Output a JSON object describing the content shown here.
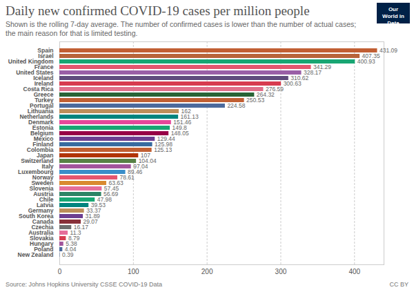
{
  "chart_data": {
    "type": "bar",
    "orientation": "horizontal",
    "title": "Daily new confirmed COVID-19 cases per million people",
    "subtitle": "Shown is the rolling 7-day average. The number of confirmed cases is lower than the number of actual cases; the main reason for that is limited testing.",
    "source": "Source: Johns Hopkins University CSSE COVID-19 Data",
    "license": "CC BY",
    "logo": "Our World in Data",
    "categories": [
      "Spain",
      "Israel",
      "United Kingdom",
      "France",
      "United States",
      "Iceland",
      "Ireland",
      "Costa Rica",
      "Greece",
      "Turkey",
      "Portugal",
      "Lithuania",
      "Netherlands",
      "Denmark",
      "Estonia",
      "Belgium",
      "Mexico",
      "Finland",
      "Colombia",
      "Japan",
      "Switzerland",
      "Italy",
      "Luxembourg",
      "Norway",
      "Sweden",
      "Slovenia",
      "Austria",
      "Chile",
      "Latvia",
      "Germany",
      "South Korea",
      "Canada",
      "Czechia",
      "Australia",
      "Slovakia",
      "Hungary",
      "Poland",
      "New Zealand"
    ],
    "values": [
      431.09,
      407.35,
      400.93,
      341.29,
      328.17,
      310.62,
      300.63,
      276.59,
      264.32,
      250.53,
      224.58,
      162,
      161.13,
      151.46,
      149.8,
      148.05,
      129.44,
      125.98,
      125.13,
      107,
      104.04,
      97.04,
      89.46,
      78.61,
      63.63,
      57.45,
      56.69,
      47.98,
      39.53,
      33.37,
      31.89,
      29.07,
      16.17,
      11.3,
      8.79,
      5.38,
      4.04,
      0.39
    ],
    "colors": [
      "#c15f33",
      "#b8643a",
      "#18a673",
      "#e5566f",
      "#9a5fa6",
      "#5f4b7c",
      "#d73c50",
      "#e0708a",
      "#286436",
      "#c15f33",
      "#4c6a9c",
      "#bc8e5a",
      "#00847e",
      "#e5479a",
      "#18a673",
      "#970046",
      "#6d3e91",
      "#386ba0",
      "#c15f33",
      "#b13507",
      "#578145",
      "#a2559c",
      "#3a8ec9",
      "#e5566f",
      "#d98a30",
      "#e56e9a",
      "#2c8465",
      "#18a673",
      "#00847e",
      "#bc8e5a",
      "#6d3e91",
      "#883039",
      "#6f6f6f",
      "#e56e9a",
      "#d73c50",
      "#a2559c",
      "#4c6a9c",
      "#4c6a9c"
    ],
    "xlim": [
      0,
      440
    ],
    "xticks": [
      0,
      100,
      200,
      300,
      400
    ],
    "grid": true,
    "data_labels": true
  }
}
